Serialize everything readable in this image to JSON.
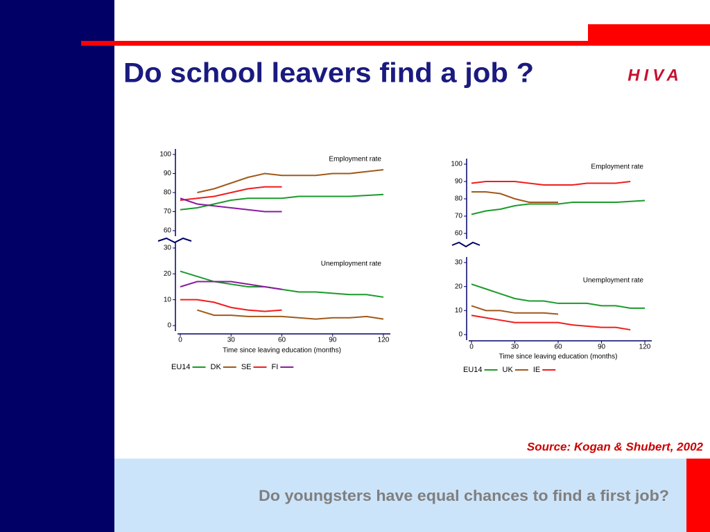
{
  "title": "Do school leavers find a job ?",
  "logo": "HIVA",
  "source": "Source: Kogan & Shubert,  2002",
  "footer": "Do youngsters have equal chances to find a first job?",
  "chart_data": [
    {
      "type": "line",
      "title": "Employment rate",
      "x": [
        0,
        10,
        20,
        30,
        40,
        50,
        60,
        70,
        80,
        90,
        100,
        110,
        120
      ],
      "ylim": [
        60,
        100
      ],
      "yticks": [
        60,
        70,
        80,
        90,
        100
      ],
      "series": [
        {
          "name": "EU14",
          "color": "#1a9a2a",
          "values": [
            71,
            72,
            74,
            76,
            77,
            77,
            77,
            78,
            78,
            78,
            78,
            78.5,
            79
          ]
        },
        {
          "name": "DK",
          "color": "#a0581a",
          "values": [
            null,
            80,
            82,
            85,
            88,
            90,
            89,
            89,
            89,
            90,
            90,
            91,
            92
          ]
        },
        {
          "name": "SE",
          "color": "#f01c1c",
          "values": [
            76,
            77,
            78,
            80,
            82,
            83,
            83,
            null,
            null,
            null,
            null,
            null,
            null
          ]
        },
        {
          "name": "FI",
          "color": "#8a1aa0",
          "values": [
            77,
            74,
            73,
            72,
            71,
            70,
            70,
            null,
            null,
            null,
            null,
            null,
            null
          ]
        }
      ]
    },
    {
      "type": "line",
      "title": "Unemployment rate",
      "xlabel": "Time since leaving education (months)",
      "x": [
        0,
        10,
        20,
        30,
        40,
        50,
        60,
        70,
        80,
        90,
        100,
        110,
        120
      ],
      "xlim": [
        0,
        120
      ],
      "xticks": [
        0,
        30,
        60,
        90,
        120
      ],
      "ylim": [
        0,
        30
      ],
      "yticks": [
        0,
        10,
        20,
        30
      ],
      "legend": "bottom",
      "series": [
        {
          "name": "EU14",
          "color": "#1a9a2a",
          "values": [
            21,
            19,
            17,
            16,
            15,
            15,
            14,
            13,
            13,
            12.5,
            12,
            12,
            11
          ]
        },
        {
          "name": "DK",
          "color": "#a0581a",
          "values": [
            null,
            6,
            4,
            4,
            3.5,
            3.5,
            3.5,
            3,
            2.5,
            3,
            3,
            3.5,
            2.5
          ]
        },
        {
          "name": "SE",
          "color": "#f01c1c",
          "values": [
            10,
            10,
            9,
            7,
            6,
            5.5,
            6,
            null,
            null,
            null,
            null,
            null,
            null
          ]
        },
        {
          "name": "FI",
          "color": "#8a1aa0",
          "values": [
            15,
            17,
            17,
            17,
            16,
            15,
            14,
            null,
            null,
            null,
            null,
            null,
            null
          ]
        }
      ]
    },
    {
      "type": "line",
      "title": "Employment rate",
      "x": [
        0,
        10,
        20,
        30,
        40,
        50,
        60,
        70,
        80,
        90,
        100,
        110,
        120
      ],
      "ylim": [
        60,
        100
      ],
      "yticks": [
        60,
        70,
        80,
        90,
        100
      ],
      "series": [
        {
          "name": "EU14",
          "color": "#1a9a2a",
          "values": [
            71,
            73,
            74,
            76,
            77,
            77,
            77,
            78,
            78,
            78,
            78,
            78.5,
            79
          ]
        },
        {
          "name": "UK",
          "color": "#a0581a",
          "values": [
            84,
            84,
            83,
            80,
            78,
            78,
            78,
            null,
            null,
            null,
            null,
            null,
            null
          ]
        },
        {
          "name": "IE",
          "color": "#f01c1c",
          "values": [
            89,
            90,
            90,
            90,
            89,
            88,
            88,
            88,
            89,
            89,
            89,
            90,
            null
          ]
        }
      ]
    },
    {
      "type": "line",
      "title": "Unemployment rate",
      "xlabel": "Time since leaving education (months)",
      "x": [
        0,
        10,
        20,
        30,
        40,
        50,
        60,
        70,
        80,
        90,
        100,
        110,
        120
      ],
      "xlim": [
        0,
        120
      ],
      "xticks": [
        0,
        30,
        60,
        90,
        120
      ],
      "ylim": [
        0,
        30
      ],
      "yticks": [
        0,
        10,
        20,
        30
      ],
      "legend": "bottom",
      "series": [
        {
          "name": "EU14",
          "color": "#1a9a2a",
          "values": [
            21,
            19,
            17,
            15,
            14,
            14,
            13,
            13,
            13,
            12,
            12,
            11,
            11
          ]
        },
        {
          "name": "UK",
          "color": "#a0581a",
          "values": [
            12,
            10,
            10,
            9,
            9,
            9,
            8.5,
            null,
            null,
            null,
            null,
            null,
            null
          ]
        },
        {
          "name": "IE",
          "color": "#f01c1c",
          "values": [
            8,
            7,
            6,
            5,
            5,
            5,
            5,
            4,
            3.5,
            3,
            3,
            2,
            null
          ]
        }
      ]
    }
  ]
}
